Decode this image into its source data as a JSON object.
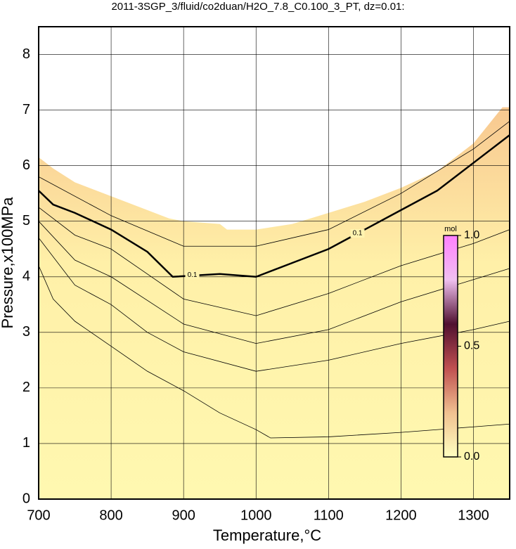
{
  "chart_data": {
    "type": "contour",
    "title": "2011-3SGP_3/fluid/co2duan/H2O_7.8_C0.100_3_PT, dz=0.01:",
    "x_label": "Temperature,°C",
    "y_label": "Pressure,x100MPa",
    "xlim": [
      700,
      1350
    ],
    "ylim": [
      0,
      8.5
    ],
    "xticks": [
      700,
      800,
      900,
      1000,
      1100,
      1200,
      1300
    ],
    "yticks": [
      0,
      1,
      2,
      3,
      4,
      5,
      6,
      7,
      8
    ],
    "grid": true,
    "boundary": {
      "x": [
        700,
        720,
        750,
        800,
        850,
        880,
        900,
        950,
        960,
        1000,
        1050,
        1100,
        1150,
        1200,
        1250,
        1300,
        1340,
        1350
      ],
      "y": [
        6.15,
        5.95,
        5.7,
        5.45,
        5.2,
        5.05,
        5.0,
        4.95,
        4.85,
        4.85,
        4.95,
        5.15,
        5.35,
        5.6,
        5.9,
        6.4,
        7.05,
        7.05
      ]
    },
    "contours": [
      {
        "color": "#000000",
        "x": [
          700,
          720,
          750,
          800,
          850,
          900,
          950,
          1000,
          1020,
          1100,
          1200,
          1300,
          1350
        ],
        "y": [
          4.2,
          3.6,
          3.2,
          2.75,
          2.3,
          1.95,
          1.55,
          1.25,
          1.1,
          1.12,
          1.2,
          1.3,
          1.35
        ]
      },
      {
        "color": "#000000",
        "x": [
          700,
          750,
          800,
          850,
          900,
          1000,
          1100,
          1200,
          1300,
          1350
        ],
        "y": [
          4.7,
          3.85,
          3.5,
          3.0,
          2.65,
          2.3,
          2.5,
          2.8,
          3.05,
          3.2
        ]
      },
      {
        "color": "#000000",
        "x": [
          700,
          750,
          800,
          900,
          1000,
          1100,
          1200,
          1300,
          1350
        ],
        "y": [
          5.0,
          4.3,
          4.0,
          3.15,
          2.8,
          3.05,
          3.55,
          3.95,
          4.15
        ]
      },
      {
        "color": "#000000",
        "x": [
          700,
          750,
          800,
          900,
          1000,
          1100,
          1200,
          1300,
          1350
        ],
        "y": [
          5.25,
          4.75,
          4.5,
          3.6,
          3.3,
          3.7,
          4.2,
          4.6,
          4.85
        ]
      },
      {
        "color": "#000000",
        "bold": true,
        "label": "0.1",
        "labels_at": [
          [
            912,
            4.03
          ],
          [
            1140,
            4.78
          ]
        ],
        "x": [
          700,
          720,
          750,
          800,
          850,
          885,
          950,
          1000,
          1050,
          1100,
          1150,
          1200,
          1250,
          1300,
          1350
        ],
        "y": [
          5.55,
          5.3,
          5.15,
          4.85,
          4.45,
          4.0,
          4.05,
          4.0,
          4.25,
          4.5,
          4.85,
          5.2,
          5.55,
          6.05,
          6.55
        ]
      },
      {
        "color": "#000000",
        "x": [
          700,
          800,
          900,
          1000,
          1100,
          1200,
          1300,
          1350
        ],
        "y": [
          5.8,
          5.1,
          4.55,
          4.55,
          4.85,
          5.5,
          6.3,
          6.8
        ]
      }
    ],
    "colorbar": {
      "label": "mol",
      "lim": [
        0,
        1
      ],
      "ticks": [
        {
          "value": 0,
          "label": "0.0"
        },
        {
          "value": 0.5,
          "label": "0.5"
        },
        {
          "value": 1,
          "label": "1.0"
        }
      ],
      "colors": [
        "#ffffc0",
        "#f0c090",
        "#c05050",
        "#501030",
        "#f0c0f0",
        "#ff80ff"
      ]
    }
  }
}
